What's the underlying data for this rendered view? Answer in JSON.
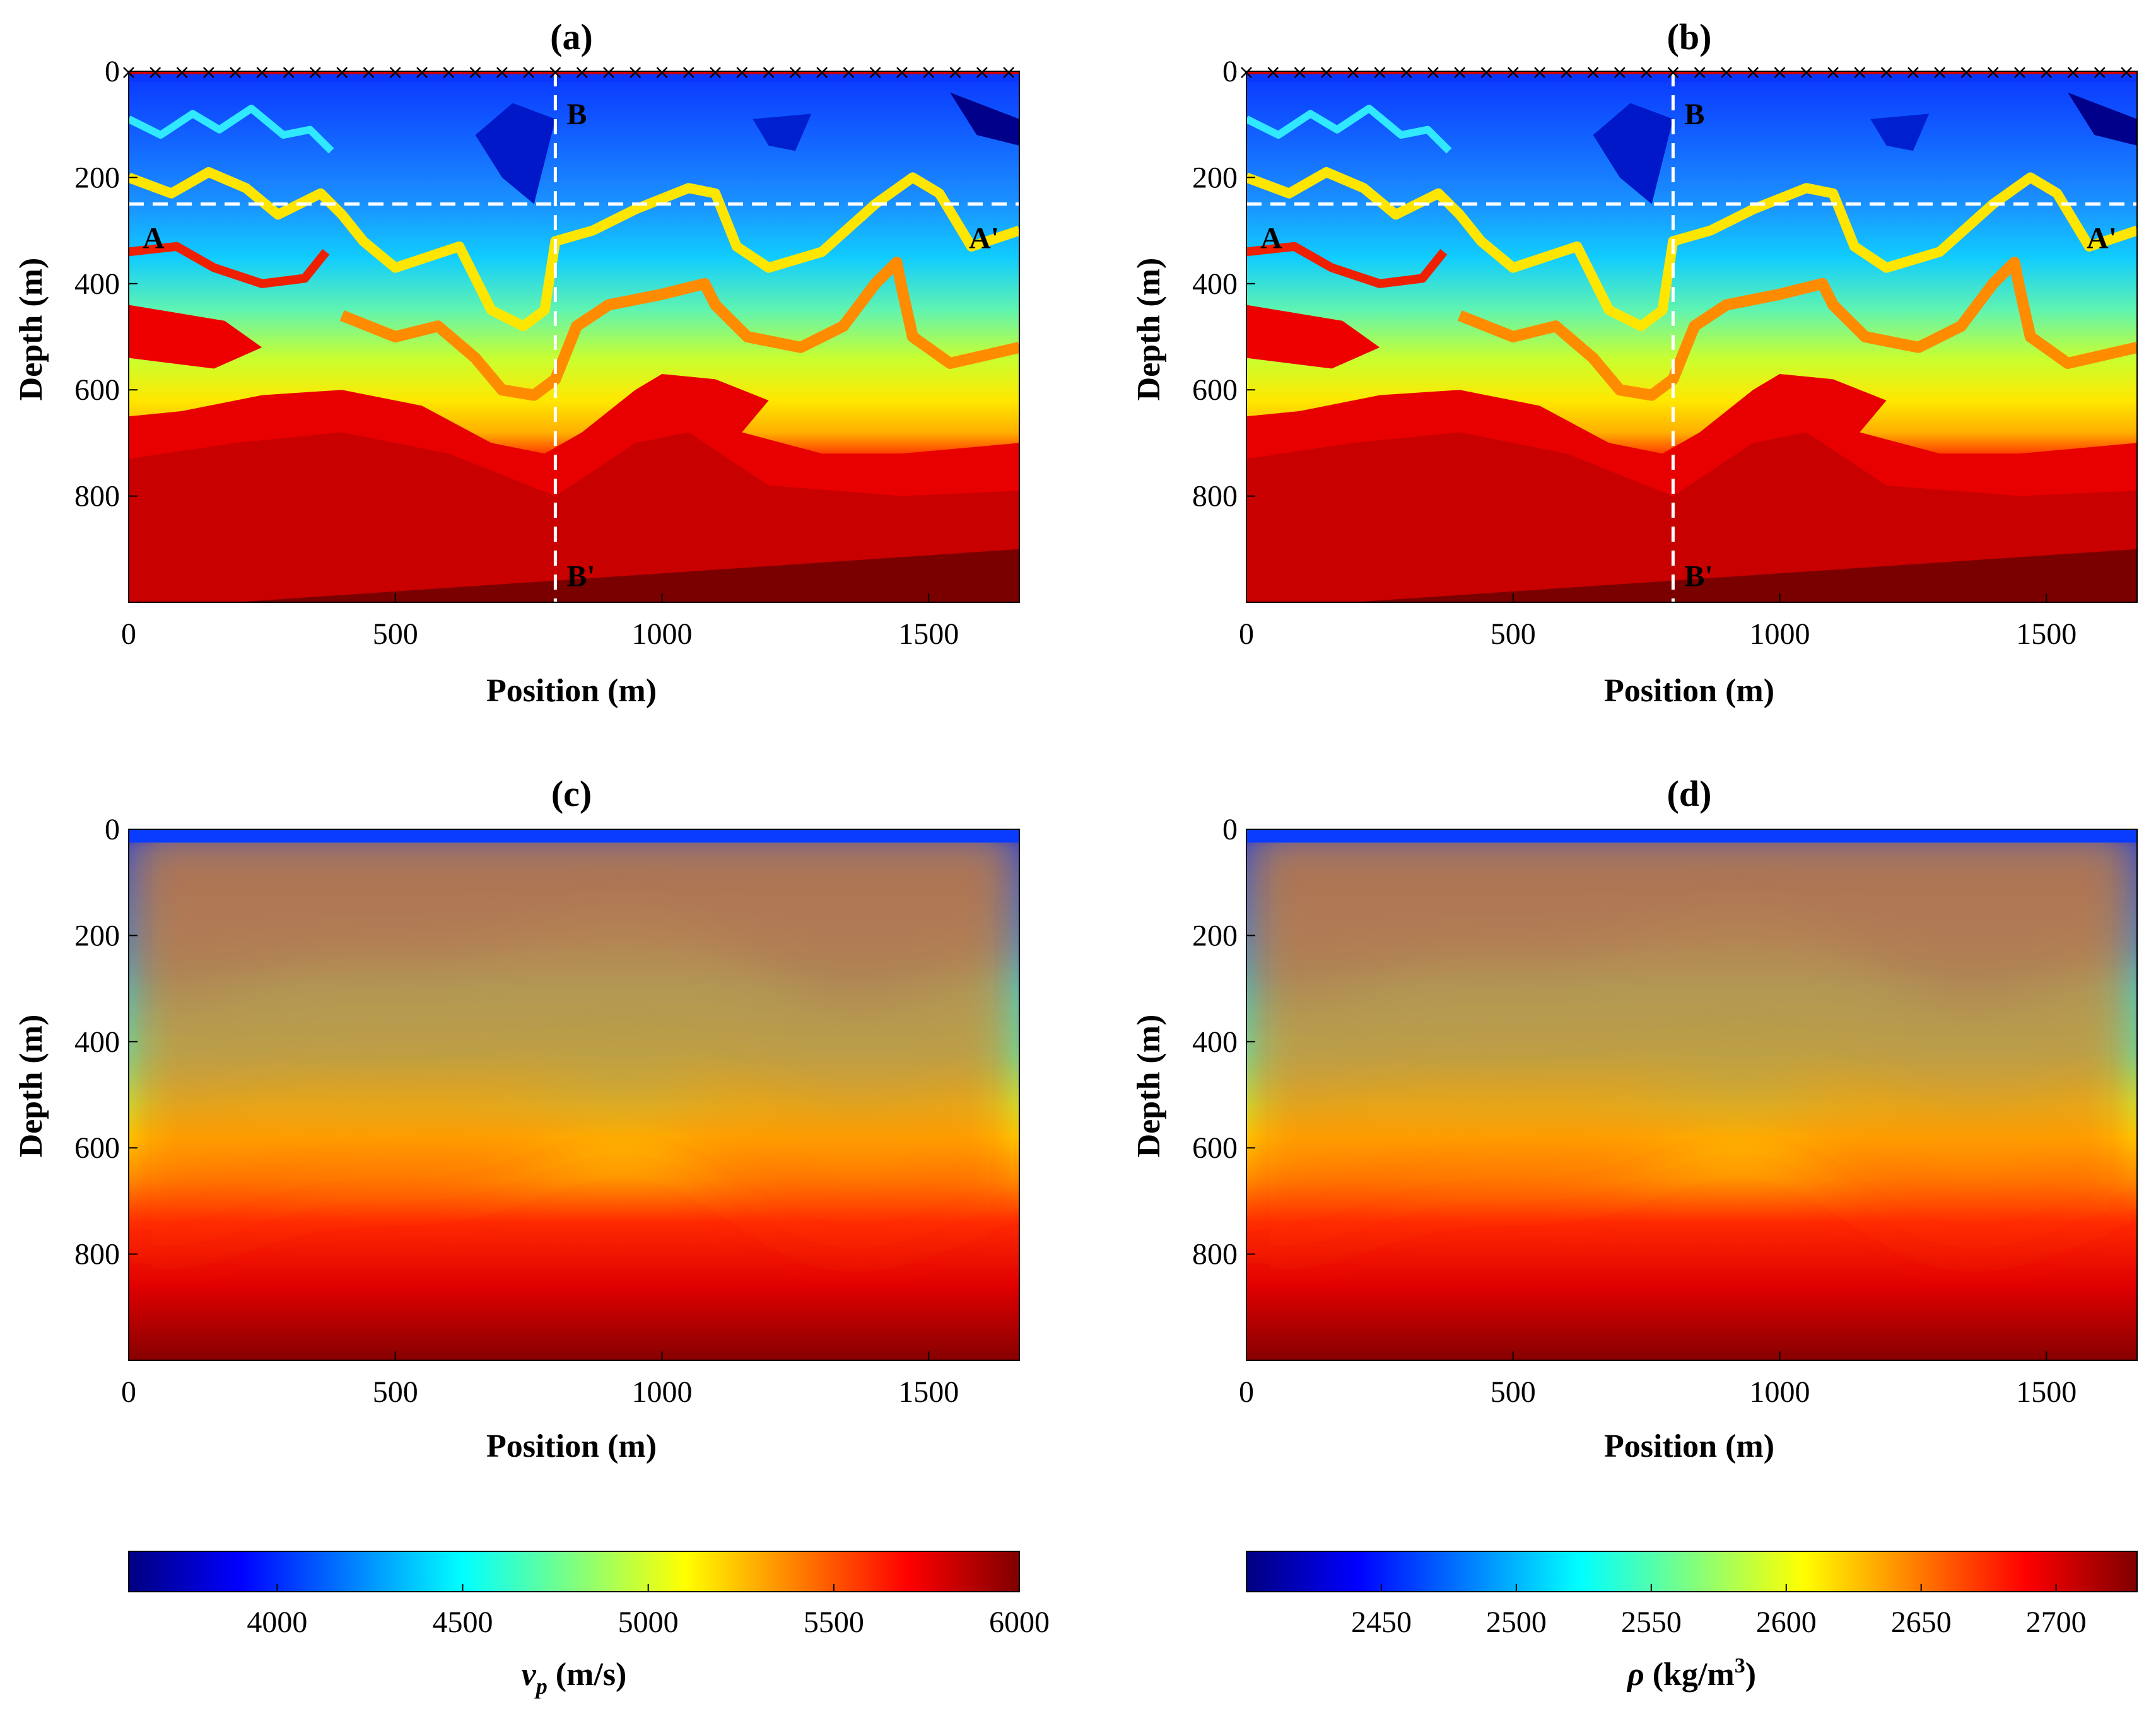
{
  "chart_data": [
    {
      "panel": "a",
      "type": "heatmap",
      "title": "(a)",
      "xlabel": "Position (m)",
      "ylabel": "Depth (m)",
      "xlim": [
        0,
        1670
      ],
      "ylim": [
        0,
        1000
      ],
      "xticks": [
        0,
        500,
        1000,
        1500
      ],
      "yticks": [
        0,
        200,
        400,
        600,
        800
      ],
      "colorbar": "vp",
      "style": "sharp",
      "lines": [
        {
          "orientation": "vertical",
          "x": 800,
          "start_label": "B",
          "end_label": "B'"
        },
        {
          "orientation": "horizontal",
          "y": 250,
          "start_label": "A",
          "end_label": "A'"
        }
      ],
      "receivers": "x markers along surface (depth 0)"
    },
    {
      "panel": "b",
      "type": "heatmap",
      "title": "(b)",
      "xlabel": "Position (m)",
      "ylabel": "Depth (m)",
      "xlim": [
        0,
        1670
      ],
      "ylim": [
        0,
        1000
      ],
      "xticks": [
        0,
        500,
        1000,
        1500
      ],
      "yticks": [
        0,
        200,
        400,
        600,
        800
      ],
      "colorbar": "rho",
      "style": "sharp",
      "lines": [
        {
          "orientation": "vertical",
          "x": 800,
          "start_label": "B",
          "end_label": "B'"
        },
        {
          "orientation": "horizontal",
          "y": 250,
          "start_label": "A",
          "end_label": "A'"
        }
      ],
      "receivers": "x markers along surface (depth 0)"
    },
    {
      "panel": "c",
      "type": "heatmap",
      "title": "(c)",
      "xlabel": "Position (m)",
      "ylabel": "Depth (m)",
      "xlim": [
        0,
        1670
      ],
      "ylim": [
        0,
        1000
      ],
      "xticks": [
        0,
        500,
        1000,
        1500
      ],
      "yticks": [
        0,
        200,
        400,
        600,
        800
      ],
      "colorbar": "vp",
      "style": "smooth"
    },
    {
      "panel": "d",
      "type": "heatmap",
      "title": "(d)",
      "xlabel": "Position (m)",
      "ylabel": "Depth (m)",
      "xlim": [
        0,
        1670
      ],
      "ylim": [
        0,
        1000
      ],
      "xticks": [
        0,
        500,
        1000,
        1500
      ],
      "yticks": [
        0,
        200,
        400,
        600,
        800
      ],
      "colorbar": "rho",
      "style": "smooth"
    }
  ],
  "colorbars": {
    "vp": {
      "label_var": "v",
      "label_sub": "p",
      "label_unit": " (m/s)",
      "range": [
        3600,
        6000
      ],
      "ticks": [
        4000,
        4500,
        5000,
        5500,
        6000
      ],
      "colormap": "jet"
    },
    "rho": {
      "label_var": "ρ",
      "label_unit": " (kg/m",
      "label_sup": "3",
      "label_close": ")",
      "range": [
        2400,
        2730
      ],
      "ticks": [
        2450,
        2500,
        2550,
        2600,
        2650,
        2700
      ],
      "colormap": "jet"
    }
  },
  "colors": {
    "jet": [
      "#00007f",
      "#0000ff",
      "#007fff",
      "#00ffff",
      "#7fff7f",
      "#ffff00",
      "#ff7f00",
      "#ff0000",
      "#7f0000"
    ],
    "receiver_line": "#cc0000",
    "guide_line": "#ffffff"
  }
}
